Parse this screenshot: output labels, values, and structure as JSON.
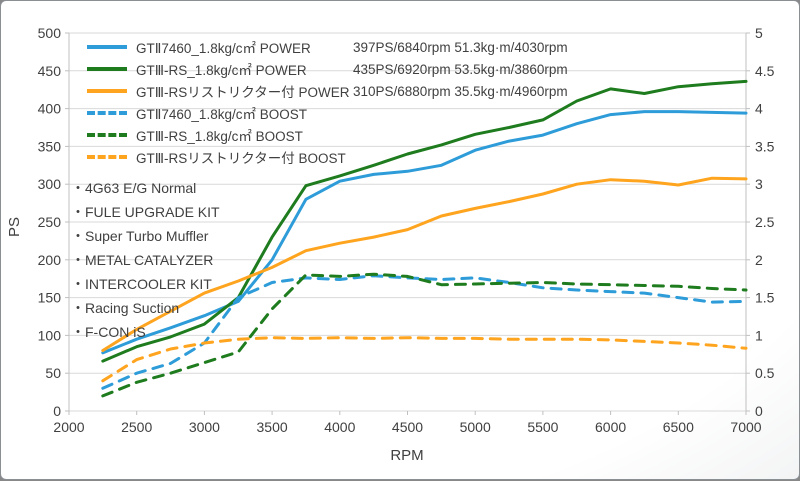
{
  "chart_data": {
    "type": "line",
    "title": "",
    "xlabel": "RPM",
    "ylabel_left": "PS",
    "xlim": [
      2000,
      7000
    ],
    "ylim_left": [
      0,
      500
    ],
    "ylim_right": [
      0,
      5
    ],
    "x_ticks": [
      2000,
      2500,
      3000,
      3500,
      4000,
      4500,
      5000,
      5500,
      6000,
      6500,
      7000
    ],
    "left_ticks": [
      0,
      50,
      100,
      150,
      200,
      250,
      300,
      350,
      400,
      450,
      500
    ],
    "right_ticks": [
      0,
      0.5,
      1,
      1.5,
      2,
      2.5,
      3,
      3.5,
      4,
      4.5,
      5
    ],
    "grid": "horizontal",
    "legend_position": "top-left",
    "colors": {
      "blue": "#2D9CD8",
      "green": "#1E7C1E",
      "orange": "#FFA41E",
      "gridline": "#D9D9D9",
      "axis": "#C0C0C0",
      "text": "#404040"
    },
    "x": [
      2250,
      2500,
      2750,
      3000,
      3250,
      3500,
      3750,
      4000,
      4250,
      4500,
      4750,
      5000,
      5250,
      5500,
      5750,
      6000,
      6250,
      6500,
      6750,
      7000
    ],
    "series": [
      {
        "name": "GTⅡ7460_1.8kg/c㎡ POWER",
        "stats": "397PS/6840rpm 51.3kg·m/4030rpm",
        "axis": "left",
        "style": "solid",
        "color": "#2D9CD8",
        "values": [
          77,
          95,
          110,
          126,
          145,
          200,
          280,
          304,
          313,
          317,
          325,
          345,
          357,
          365,
          380,
          392,
          396,
          396,
          395,
          394
        ]
      },
      {
        "name": "GTⅢ-RS_1.8kg/c㎡ POWER",
        "stats": "435PS/6920rpm 53.5kg·m/3860rpm",
        "axis": "left",
        "style": "solid",
        "color": "#1E7C1E",
        "values": [
          66,
          85,
          98,
          115,
          150,
          230,
          298,
          311,
          325,
          340,
          352,
          366,
          375,
          385,
          410,
          426,
          420,
          429,
          433,
          436
        ]
      },
      {
        "name": "GTⅢ-RSリストリクター付 POWER",
        "stats": "310PS/6880rpm 35.5kg·m/4960rpm",
        "axis": "left",
        "style": "solid",
        "color": "#FFA41E",
        "values": [
          80,
          108,
          132,
          156,
          172,
          190,
          212,
          222,
          230,
          240,
          258,
          268,
          277,
          287,
          300,
          306,
          304,
          299,
          308,
          307
        ]
      },
      {
        "name": "GTⅡ7460_1.8kg/c㎡ BOOST",
        "stats": "",
        "axis": "right",
        "style": "dashed",
        "color": "#2D9CD8",
        "values": [
          0.3,
          0.5,
          0.63,
          0.9,
          1.5,
          1.7,
          1.76,
          1.74,
          1.79,
          1.76,
          1.74,
          1.76,
          1.7,
          1.63,
          1.6,
          1.58,
          1.56,
          1.5,
          1.44,
          1.45
        ]
      },
      {
        "name": "GTⅢ-RS_1.8kg/c㎡ BOOST",
        "stats": "",
        "axis": "right",
        "style": "dashed",
        "color": "#1E7C1E",
        "values": [
          0.2,
          0.38,
          0.5,
          0.64,
          0.78,
          1.35,
          1.8,
          1.78,
          1.81,
          1.78,
          1.67,
          1.68,
          1.69,
          1.7,
          1.68,
          1.67,
          1.66,
          1.65,
          1.62,
          1.6
        ]
      },
      {
        "name": "GTⅢ-RSリストリクター付 BOOST",
        "stats": "",
        "axis": "right",
        "style": "dashed",
        "color": "#FFA41E",
        "values": [
          0.4,
          0.68,
          0.82,
          0.9,
          0.95,
          0.97,
          0.96,
          0.97,
          0.96,
          0.97,
          0.96,
          0.96,
          0.95,
          0.95,
          0.95,
          0.94,
          0.92,
          0.9,
          0.87,
          0.83
        ]
      }
    ],
    "annotations": [
      "・4G63 E/G Normal",
      "・FULE UPGRADE KIT",
      "・Super Turbo Muffler",
      "・METAL CATALYZER",
      "・INTERCOOLER KIT",
      "・Racing Suction",
      "・F-CON iS"
    ]
  }
}
